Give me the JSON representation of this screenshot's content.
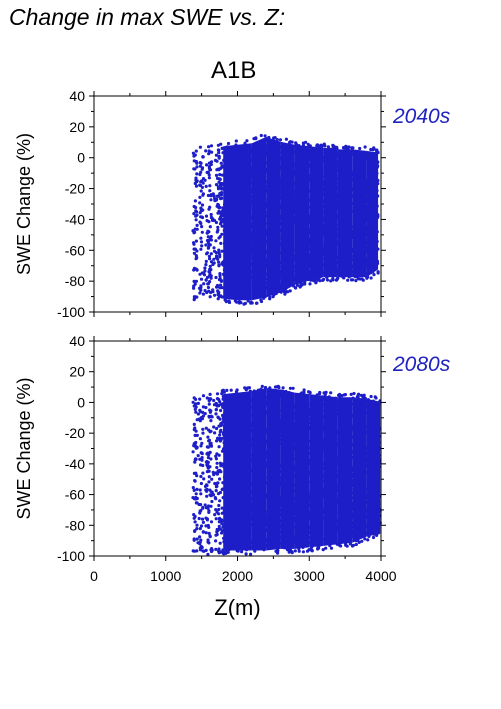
{
  "page_title": "Change in max SWE vs. Z:",
  "scenario": "A1B",
  "colors": {
    "points": "#1e1ec8",
    "axes": "#000000",
    "label": "#1e22bf"
  },
  "chart_data": [
    {
      "type": "scatter",
      "panel_label": "2040s",
      "ylabel": "SWE Change (%)",
      "xlabel": "",
      "xlim": [
        0,
        4000
      ],
      "ylim": [
        -100,
        40
      ],
      "yticks": [
        -100,
        -80,
        -60,
        -40,
        -20,
        0,
        20,
        40
      ],
      "xticks": [
        0,
        1000,
        2000,
        3000,
        4000
      ],
      "show_x_ticklabels": false,
      "grid": false,
      "series": [
        {
          "color": "#1e1ec8",
          "x_range": [
            1380,
            3960
          ],
          "envelope": [
            {
              "x": 1380,
              "ymin": -92,
              "ymax": 7
            },
            {
              "x": 1600,
              "ymin": -92,
              "ymax": 8
            },
            {
              "x": 1800,
              "ymin": -94,
              "ymax": 10
            },
            {
              "x": 2000,
              "ymin": -95,
              "ymax": 11
            },
            {
              "x": 2200,
              "ymin": -95,
              "ymax": 12
            },
            {
              "x": 2400,
              "ymin": -93,
              "ymax": 16
            },
            {
              "x": 2600,
              "ymin": -90,
              "ymax": 13
            },
            {
              "x": 2800,
              "ymin": -85,
              "ymax": 11
            },
            {
              "x": 3000,
              "ymin": -82,
              "ymax": 10
            },
            {
              "x": 3200,
              "ymin": -80,
              "ymax": 9
            },
            {
              "x": 3400,
              "ymin": -80,
              "ymax": 8
            },
            {
              "x": 3600,
              "ymin": -80,
              "ymax": 8
            },
            {
              "x": 3800,
              "ymin": -80,
              "ymax": 7
            },
            {
              "x": 3960,
              "ymin": -75,
              "ymax": 6
            }
          ]
        }
      ]
    },
    {
      "type": "scatter",
      "panel_label": "2080s",
      "ylabel": "SWE Change (%)",
      "xlabel": "Z(m)",
      "xlim": [
        0,
        4000
      ],
      "ylim": [
        -100,
        40
      ],
      "yticks": [
        -100,
        -80,
        -60,
        -40,
        -20,
        0,
        20,
        40
      ],
      "xticks": [
        0,
        1000,
        2000,
        3000,
        4000
      ],
      "xtick_labels": [
        "0",
        "1000",
        "2000",
        "3000",
        "4000"
      ],
      "show_x_ticklabels": true,
      "grid": false,
      "series": [
        {
          "color": "#1e1ec8",
          "x_range": [
            1380,
            3990
          ],
          "envelope": [
            {
              "x": 1380,
              "ymin": -98,
              "ymax": 5
            },
            {
              "x": 1600,
              "ymin": -99,
              "ymax": 6
            },
            {
              "x": 1800,
              "ymin": -99,
              "ymax": 8
            },
            {
              "x": 2000,
              "ymin": -99,
              "ymax": 9
            },
            {
              "x": 2200,
              "ymin": -99,
              "ymax": 10
            },
            {
              "x": 2400,
              "ymin": -99,
              "ymax": 12
            },
            {
              "x": 2600,
              "ymin": -98,
              "ymax": 11
            },
            {
              "x": 2800,
              "ymin": -98,
              "ymax": 9
            },
            {
              "x": 3000,
              "ymin": -97,
              "ymax": 8
            },
            {
              "x": 3200,
              "ymin": -96,
              "ymax": 7
            },
            {
              "x": 3400,
              "ymin": -95,
              "ymax": 6
            },
            {
              "x": 3600,
              "ymin": -94,
              "ymax": 6
            },
            {
              "x": 3800,
              "ymin": -90,
              "ymax": 5
            },
            {
              "x": 3990,
              "ymin": -88,
              "ymax": 3
            }
          ]
        }
      ]
    }
  ]
}
